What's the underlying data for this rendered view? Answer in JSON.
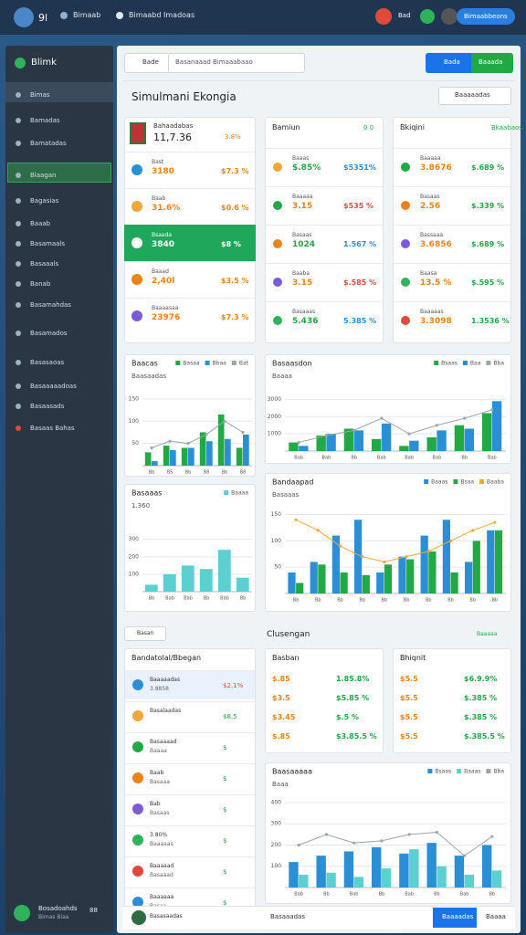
{
  "header": {
    "logo": "9l",
    "app": "Bimaab",
    "menu": "Bimaabd Imadoas",
    "badge": "Bad",
    "button": "Bimaabbeons"
  },
  "sidebar": {
    "brand": "Blimk",
    "items": [
      "Bimas",
      "Bamadas",
      "Bamatadas",
      "Blaagan",
      "Bagasias",
      "Baaab",
      "Basamaals",
      "Basaaals",
      "Banab",
      "Basamahdas",
      "Basamados",
      "Basasaoas",
      "Basaaaaadoas",
      "Basaasads",
      "Basaas Bahas"
    ],
    "user": "Bosadoahds",
    "user_sub": "Bimas Biaa",
    "count": "88"
  },
  "toolbar": {
    "search": "Bade",
    "select": "Basanaaad Bimaaabaao",
    "primary": "Bada",
    "secondary": "Baaada"
  },
  "title": "Simulmani Ekongia",
  "title_action": "Baaaaadas",
  "stat_panels": [
    {
      "title": "Bahaadabas",
      "value": "11,7.36",
      "change": "3.8%",
      "rows": [
        {
          "name": "Bast",
          "value": "3180",
          "change": "$7.3 %"
        },
        {
          "name": "Baab",
          "value": "31.6%",
          "change": "$0.6 %"
        },
        {
          "name": "Bsaada",
          "value": "3840",
          "change": "$8 %"
        },
        {
          "name": "Baaad",
          "value": "2,40l",
          "change": "$3.5 %"
        },
        {
          "name": "Baaaasaa",
          "value": "23976",
          "change": "$7.3 %"
        }
      ]
    },
    {
      "title": "Bamiun",
      "value": "0 0",
      "change": "",
      "rows": [
        {
          "name": "Baaas",
          "value": "$.85%",
          "change": "$5351%"
        },
        {
          "name": "Baaaaa",
          "value": "3.15",
          "change": "$535 %"
        },
        {
          "name": "Basaas",
          "value": "1024",
          "change": "1.567 %"
        },
        {
          "name": "Baaba",
          "value": "3.15",
          "change": "$.585 %"
        },
        {
          "name": "Basaaas",
          "value": "5.436",
          "change": "5.385 %"
        }
      ]
    },
    {
      "title": "Bkiqini",
      "value": "Bkaabaos",
      "change": "",
      "rows": [
        {
          "name": "Baaaaa",
          "value": "3.8676",
          "change": "$.689 %"
        },
        {
          "name": "Basaas",
          "value": "2.56",
          "change": "$.339 %"
        },
        {
          "name": "Bassaaa",
          "value": "3.6856",
          "change": "$.689 %"
        },
        {
          "name": "Baasa",
          "value": "13.5 %",
          "change": "$.595 %"
        },
        {
          "name": "Baaaaas",
          "value": "3.3098",
          "change": "1.3536 %"
        }
      ]
    }
  ],
  "section": {
    "filter": "Basan",
    "title": "Clusengan",
    "action": "Baaaaa"
  },
  "list_panel": {
    "title": "Bandatolal/Bbegan",
    "rows": [
      {
        "name": "Baaaaadas",
        "value": "3.8858",
        "change": "$2.1%"
      },
      {
        "name": "Basalaadas",
        "value": "",
        "change": "$8.5"
      },
      {
        "name": "Basaaaad",
        "value": "Baaaa",
        "change": "$"
      },
      {
        "name": "Baab",
        "value": "Basaaa",
        "change": "$"
      },
      {
        "name": "Bab",
        "value": "Basaas",
        "change": "$"
      },
      {
        "name": "3.80%",
        "value": "Baaaaas",
        "change": "$"
      },
      {
        "name": "Baaaaad",
        "value": "Basaaad",
        "change": "$"
      },
      {
        "name": "Baaaaaa",
        "value": "Basaa",
        "change": "$"
      }
    ]
  },
  "small_panels": [
    {
      "title": "Basban",
      "rows": [
        [
          "$.85",
          "1.85.8%"
        ],
        [
          "$3.5",
          "$5.85 %"
        ],
        [
          "$3.45",
          "$.5 %"
        ],
        [
          "$.85",
          "$3.85.5 %"
        ]
      ]
    },
    {
      "title": "Bhiqnit",
      "rows": [
        [
          "$5.5",
          "$6.9.9%"
        ],
        [
          "$5.5",
          "$.385 %"
        ],
        [
          "$5.5",
          "$.385 %"
        ],
        [
          "$5.5",
          "$.385.5 %"
        ]
      ]
    }
  ],
  "footer": {
    "user": "Basasaadas",
    "search": "Basaaadas",
    "primary": "Baaaadas",
    "secondary": "Baaaa"
  },
  "chart_data": [
    {
      "type": "bar",
      "title": "Baacas",
      "subtitle": "Baasaadas",
      "categories": [
        "Bb",
        "B5",
        "Bb",
        "B8",
        "Bb",
        "B8"
      ],
      "series": [
        {
          "name": "Basaa",
          "color": "#22a845",
          "values": [
            30,
            45,
            40,
            75,
            115,
            40
          ]
        },
        {
          "name": "Bbaa",
          "color": "#2b8fd6",
          "values": [
            10,
            35,
            40,
            55,
            60,
            70
          ]
        }
      ],
      "line": {
        "name": "Bat",
        "color": "#9aa5ad",
        "values": [
          40,
          55,
          50,
          70,
          100,
          75
        ]
      },
      "ylim": [
        0,
        160
      ],
      "yticks": [
        50,
        100,
        150
      ],
      "grid": true
    },
    {
      "type": "bar",
      "title": "Basaasdon",
      "subtitle": "Baaaa",
      "categories": [
        "Bab",
        "Bab",
        "Bb",
        "Bab",
        "Bab",
        "Bab",
        "Bb",
        "Bab"
      ],
      "series": [
        {
          "name": "Bsaas",
          "color": "#22a845",
          "values": [
            500,
            900,
            1300,
            700,
            300,
            800,
            1500,
            2200
          ]
        },
        {
          "name": "Baa",
          "color": "#2b8fd6",
          "values": [
            300,
            1000,
            1200,
            1600,
            600,
            1200,
            1300,
            2900
          ]
        }
      ],
      "line": {
        "name": "Bba",
        "color": "#9aa5ad",
        "values": [
          500,
          900,
          1200,
          1900,
          1000,
          1500,
          1900,
          2400
        ]
      },
      "ylim": [
        0,
        3500
      ],
      "yticks": [
        1000,
        2000,
        3000
      ],
      "grid": true
    },
    {
      "type": "bar",
      "title": "Basaaas",
      "subtitle": "1.360",
      "categories": [
        "Bb",
        "Bab",
        "Bab",
        "Bb",
        "Bab",
        "Bb"
      ],
      "series": [
        {
          "name": "Baaaa",
          "color": "#5ccfd0",
          "values": [
            40,
            100,
            150,
            130,
            240,
            80
          ]
        }
      ],
      "ylim": [
        0,
        330
      ],
      "yticks": [
        100,
        200,
        300
      ],
      "grid": true
    },
    {
      "type": "bar",
      "title": "Bandaapad",
      "subtitle": "Basaaas",
      "categories": [
        "Bb",
        "Bb",
        "Bb",
        "Bb",
        "Bb",
        "Bb",
        "Bb",
        "Bb",
        "Bb",
        "Bb"
      ],
      "series": [
        {
          "name": "Baaas",
          "color": "#2b8fd6",
          "values": [
            40,
            60,
            110,
            140,
            40,
            70,
            110,
            140,
            60,
            120
          ]
        },
        {
          "name": "Bsaa",
          "color": "#22a845",
          "values": [
            20,
            55,
            40,
            35,
            55,
            65,
            80,
            40,
            100,
            120
          ]
        }
      ],
      "line": {
        "name": "Baaba",
        "color": "#f0a73a",
        "values": [
          140,
          120,
          90,
          70,
          60,
          70,
          80,
          100,
          120,
          135
        ]
      },
      "ylim": [
        0,
        170
      ],
      "yticks": [
        50,
        100,
        150
      ],
      "grid": true
    },
    {
      "type": "bar",
      "title": "Baasaaaaa",
      "subtitle": "Baaa",
      "categories": [
        "Bab",
        "Bb",
        "Bab",
        "Bb",
        "Bab",
        "Bb",
        "Bab",
        "Bb"
      ],
      "series": [
        {
          "name": "Bsaas",
          "color": "#2b8fd6",
          "values": [
            120,
            150,
            170,
            190,
            160,
            210,
            150,
            200
          ]
        },
        {
          "name": "Baaas",
          "color": "#5ccfd0",
          "values": [
            60,
            70,
            50,
            90,
            180,
            100,
            60,
            80
          ]
        }
      ],
      "line": {
        "name": "Bba",
        "color": "#9aa5ad",
        "values": [
          200,
          250,
          210,
          220,
          250,
          260,
          150,
          240
        ]
      },
      "ylim": [
        0,
        430
      ],
      "yticks": [
        100,
        200,
        300,
        400
      ],
      "grid": true
    }
  ]
}
